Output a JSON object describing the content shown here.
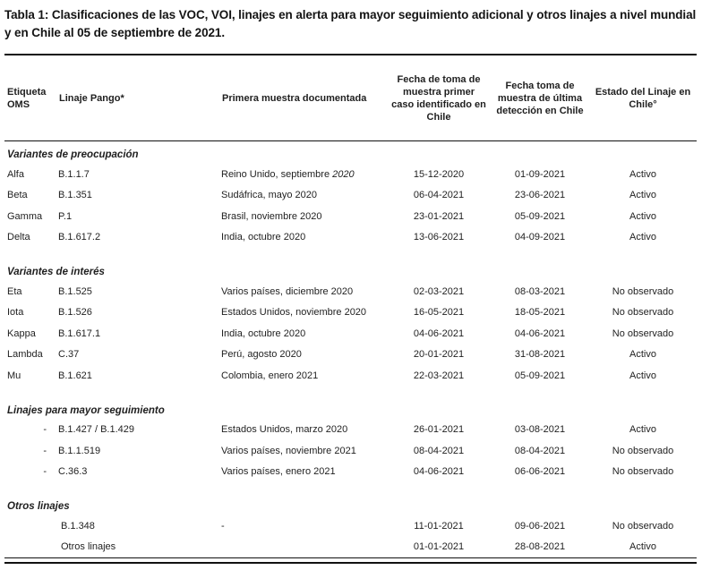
{
  "title": "Tabla 1: Clasificaciones de las VOC, VOI, linajes en alerta para mayor seguimiento adicional y otros linajes a nivel mundial y en Chile al 05 de septiembre de 2021.",
  "table": {
    "columns": [
      "Etiqueta OMS",
      "Linaje Pango*",
      "Primera muestra documentada",
      "Fecha de toma de muestra primer caso identificado en Chile",
      "Fecha toma de muestra de última detección en Chile",
      "Estado del Linaje en Chile°"
    ],
    "sections": [
      {
        "title": "Variantes de preocupación",
        "rows": [
          {
            "who": "Alfa",
            "prefix": "",
            "pango": "B.1.1.7",
            "first_sample": "Reino Unido, septiembre ",
            "first_sample_italic": "2020",
            "first_chile": "15-12-2020",
            "last_chile": "01-09-2021",
            "status": "Activo"
          },
          {
            "who": "Beta",
            "prefix": "",
            "pango": "B.1.351",
            "first_sample": "Sudáfrica, mayo 2020",
            "first_sample_italic": "",
            "first_chile": "06-04-2021",
            "last_chile": "23-06-2021",
            "status": "Activo"
          },
          {
            "who": "Gamma",
            "prefix": "",
            "pango": "P.1",
            "first_sample": "Brasil, noviembre 2020",
            "first_sample_italic": "",
            "first_chile": "23-01-2021",
            "last_chile": "05-09-2021",
            "status": "Activo"
          },
          {
            "who": "Delta",
            "prefix": "",
            "pango": "B.1.617.2",
            "first_sample": "India, octubre 2020",
            "first_sample_italic": "",
            "first_chile": "13-06-2021",
            "last_chile": "04-09-2021",
            "status": "Activo"
          }
        ]
      },
      {
        "title": "Variantes de interés",
        "rows": [
          {
            "who": "Eta",
            "prefix": "",
            "pango": "B.1.525",
            "first_sample": "Varios países, diciembre 2020",
            "first_sample_italic": "",
            "first_chile": "02-03-2021",
            "last_chile": "08-03-2021",
            "status": "No observado"
          },
          {
            "who": "Iota",
            "prefix": "",
            "pango": "B.1.526",
            "first_sample": "Estados Unidos, noviembre 2020",
            "first_sample_italic": "",
            "first_chile": "16-05-2021",
            "last_chile": "18-05-2021",
            "status": "No observado"
          },
          {
            "who": "Kappa",
            "prefix": "",
            "pango": "B.1.617.1",
            "first_sample": "India, octubre 2020",
            "first_sample_italic": "",
            "first_chile": "04-06-2021",
            "last_chile": "04-06-2021",
            "status": "No observado"
          },
          {
            "who": "Lambda",
            "prefix": "",
            "pango": "C.37",
            "first_sample": "Perú, agosto 2020",
            "first_sample_italic": "",
            "first_chile": "20-01-2021",
            "last_chile": "31-08-2021",
            "status": "Activo"
          },
          {
            "who": "Mu",
            "prefix": "",
            "pango": "B.1.621",
            "first_sample": "Colombia, enero 2021",
            "first_sample_italic": "",
            "first_chile": "22-03-2021",
            "last_chile": "05-09-2021",
            "status": "Activo"
          }
        ]
      },
      {
        "title": "Linajes para mayor seguimiento",
        "rows": [
          {
            "who": "",
            "prefix": "-",
            "pango": "B.1.427 / B.1.429",
            "first_sample": "Estados Unidos, marzo 2020",
            "first_sample_italic": "",
            "first_chile": "26-01-2021",
            "last_chile": "03-08-2021",
            "status": "Activo"
          },
          {
            "who": "",
            "prefix": "-",
            "pango": "B.1.1.519",
            "first_sample": "Varios países, noviembre 2021",
            "first_sample_italic": "",
            "first_chile": "08-04-2021",
            "last_chile": "08-04-2021",
            "status": "No observado"
          },
          {
            "who": "",
            "prefix": "-",
            "pango": "C.36.3",
            "first_sample": "Varios países, enero 2021",
            "first_sample_italic": "",
            "first_chile": "04-06-2021",
            "last_chile": "06-06-2021",
            "status": "No observado"
          }
        ]
      },
      {
        "title": "Otros linajes",
        "rows": [
          {
            "who": "",
            "prefix": "",
            "pango": "B.1.348",
            "first_sample": "-",
            "first_sample_italic": "",
            "first_chile": "11-01-2021",
            "last_chile": "09-06-2021",
            "status": "No observado",
            "indent": true
          },
          {
            "who": "",
            "prefix": "",
            "pango": "Otros linajes",
            "first_sample": "",
            "first_sample_italic": "",
            "first_chile": "01-01-2021",
            "last_chile": "28-08-2021",
            "status": "Activo",
            "indent": true
          }
        ]
      }
    ]
  }
}
